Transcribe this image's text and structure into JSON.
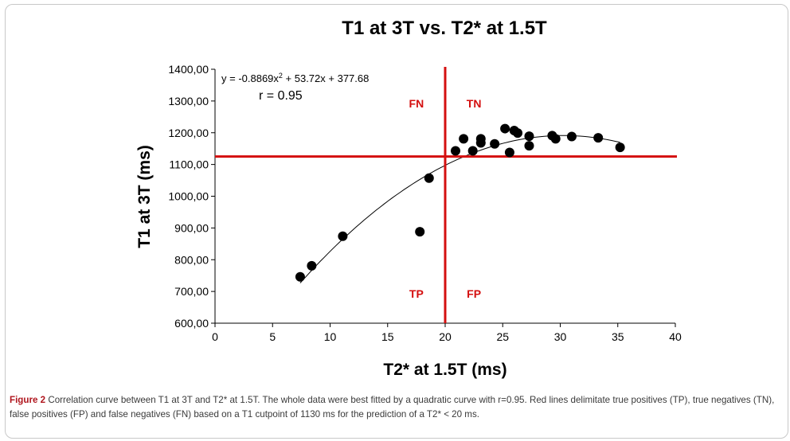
{
  "chart_data": {
    "type": "scatter",
    "title": "T1 at 3T vs. T2* at 1.5T",
    "xlabel": "T2* at 1.5T (ms)",
    "ylabel": "T1 at 3T (ms)",
    "xlim": [
      0,
      40
    ],
    "ylim": [
      600,
      1400
    ],
    "x_ticks": [
      "0",
      "5",
      "10",
      "15",
      "20",
      "25",
      "30",
      "35",
      "40"
    ],
    "x_tick_values": [
      0,
      5,
      10,
      15,
      20,
      25,
      30,
      35,
      40
    ],
    "y_ticks": [
      "600,00",
      "700,00",
      "800,00",
      "900,00",
      "1000,00",
      "1100,00",
      "1200,00",
      "1300,00",
      "1400,00"
    ],
    "y_tick_values": [
      600,
      700,
      800,
      900,
      1000,
      1100,
      1200,
      1300,
      1400
    ],
    "grid": false,
    "points": [
      {
        "x": 7.4,
        "y": 746
      },
      {
        "x": 8.4,
        "y": 781
      },
      {
        "x": 11.1,
        "y": 874
      },
      {
        "x": 17.8,
        "y": 888
      },
      {
        "x": 18.6,
        "y": 1057
      },
      {
        "x": 20.9,
        "y": 1143
      },
      {
        "x": 21.6,
        "y": 1181
      },
      {
        "x": 22.4,
        "y": 1143
      },
      {
        "x": 23.1,
        "y": 1181
      },
      {
        "x": 23.1,
        "y": 1168
      },
      {
        "x": 24.3,
        "y": 1165
      },
      {
        "x": 25.2,
        "y": 1213
      },
      {
        "x": 25.6,
        "y": 1138
      },
      {
        "x": 26.0,
        "y": 1207
      },
      {
        "x": 26.3,
        "y": 1199
      },
      {
        "x": 27.3,
        "y": 1189
      },
      {
        "x": 27.3,
        "y": 1159
      },
      {
        "x": 29.3,
        "y": 1191
      },
      {
        "x": 29.6,
        "y": 1181
      },
      {
        "x": 31.0,
        "y": 1188
      },
      {
        "x": 33.3,
        "y": 1184
      },
      {
        "x": 35.2,
        "y": 1154
      }
    ],
    "fit": {
      "a": -0.8869,
      "b": 53.72,
      "c": 377.68,
      "x_range": [
        7.4,
        35.2
      ]
    },
    "equation": "y = -0.8869x",
    "equation_sup": "2",
    "equation_rest": " + 53.72x + 377.68",
    "r_label": "r = 0.95",
    "cutoff_lines": {
      "x": 20,
      "y": 1125,
      "color": "#d40f0f"
    },
    "quadrant_labels": [
      {
        "text": "FN",
        "x": 17.5,
        "y": 1280
      },
      {
        "text": "TN",
        "x": 22.5,
        "y": 1280
      },
      {
        "text": "TP",
        "x": 17.5,
        "y": 680
      },
      {
        "text": "FP",
        "x": 22.5,
        "y": 680
      }
    ],
    "point_color": "#000000",
    "curve_color": "#000000"
  },
  "caption": {
    "figure_label": "Figure 2",
    "text": " Correlation curve between T1 at 3T and T2* at 1.5T. The whole data were best fitted by a quadratic curve with r=0.95. Red lines delimitate true positives (TP), true negatives (TN), false positives (FP) and false negatives (FN) based on a T1 cutpoint of 1130 ms for the prediction of a T2* < 20 ms."
  }
}
